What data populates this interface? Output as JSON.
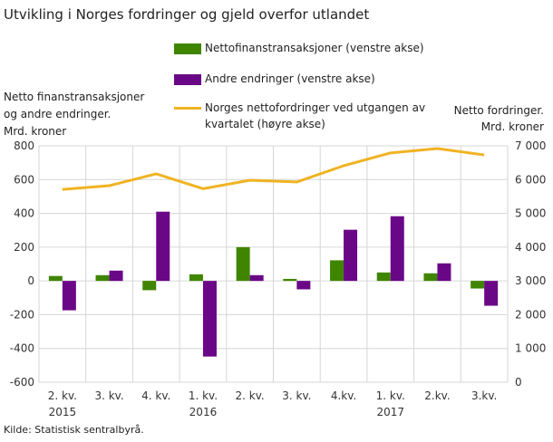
{
  "chart_data": {
    "type": "bar",
    "title": "Utvikling i Norges fordringer og gjeld overfor utlandet",
    "categories": [
      [
        "2. kv.",
        "2015"
      ],
      [
        "3. kv.",
        ""
      ],
      [
        "4. kv.",
        ""
      ],
      [
        "1. kv.",
        "2016"
      ],
      [
        "2. kv.",
        ""
      ],
      [
        "3. kv.",
        ""
      ],
      [
        "4.kv.",
        ""
      ],
      [
        "1. kv.",
        "2017"
      ],
      [
        "2.kv.",
        ""
      ],
      [
        "3.kv.",
        ""
      ]
    ],
    "ylabel_left": [
      "Netto finanstransaksjoner",
      "og andre endringer.",
      "Mrd. kroner"
    ],
    "ylabel_right": [
      "Netto fordringer.",
      "Mrd. kroner"
    ],
    "ylim_left": [
      -600,
      800
    ],
    "yticks_left": [
      "-600",
      "-400",
      "-200",
      "0",
      "200",
      "400",
      "600",
      "800"
    ],
    "ylim_right": [
      0,
      7000
    ],
    "yticks_right": [
      "0",
      "1 000",
      "2 000",
      "3 000",
      "4 000",
      "5 000",
      "6 000",
      "7 000"
    ],
    "grid": true,
    "legend_position": "top",
    "series": [
      {
        "name": "Nettofinanstransaksjoner (venstre akse)",
        "type": "bar",
        "axis": "left",
        "color": "#3f8500",
        "values": [
          29,
          34,
          -55,
          39,
          200,
          12,
          122,
          50,
          45,
          -45
        ]
      },
      {
        "name": "Andre endringer (venstre akse)",
        "type": "bar",
        "axis": "left",
        "color": "#6a0787",
        "values": [
          -174,
          61,
          410,
          -448,
          34,
          -50,
          303,
          383,
          104,
          -147
        ]
      },
      {
        "name": "Norges nettofordringer ved utgangen av kvartalet (høyre akse)",
        "name_lines": [
          "Norges nettofordringer ved utgangen av",
          "kvartalet (høyre akse)"
        ],
        "type": "line",
        "axis": "right",
        "color": "#f0b323",
        "values": [
          5710,
          5820,
          6170,
          5730,
          5980,
          5930,
          6410,
          6790,
          6920,
          6730
        ]
      }
    ],
    "source": "Kilde: Statistisk sentralbyrå."
  }
}
